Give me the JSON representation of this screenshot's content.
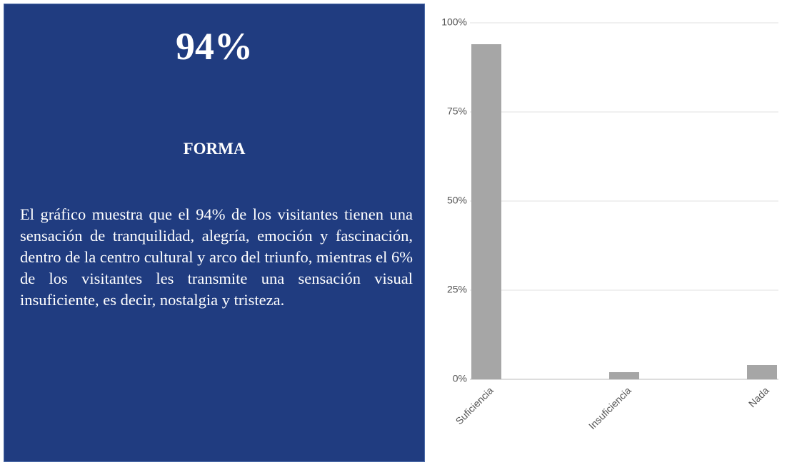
{
  "panel": {
    "headline": "94%",
    "heading": "FORMA",
    "body": "El gráfico muestra que el 94% de los visitantes tienen una sensación de tranquilidad, alegría, emoción y fascinación, dentro de la centro cultural y arco del triunfo, mientras el 6% de los visitantes les transmite una sensación visual insuficiente, es decir, nostalgia y tristeza."
  },
  "chart_data": {
    "type": "bar",
    "categories": [
      "Suficiencia",
      "Insuficiencia",
      "Nada"
    ],
    "values": [
      94,
      2,
      4
    ],
    "color": "#a6a6a6",
    "ylim": [
      0,
      100
    ],
    "yticks": [
      {
        "value": 0,
        "label": "0%"
      },
      {
        "value": 25,
        "label": "25%"
      },
      {
        "value": 50,
        "label": "50%"
      },
      {
        "value": 75,
        "label": "75%"
      },
      {
        "value": 100,
        "label": "100%"
      }
    ],
    "grid": true
  }
}
